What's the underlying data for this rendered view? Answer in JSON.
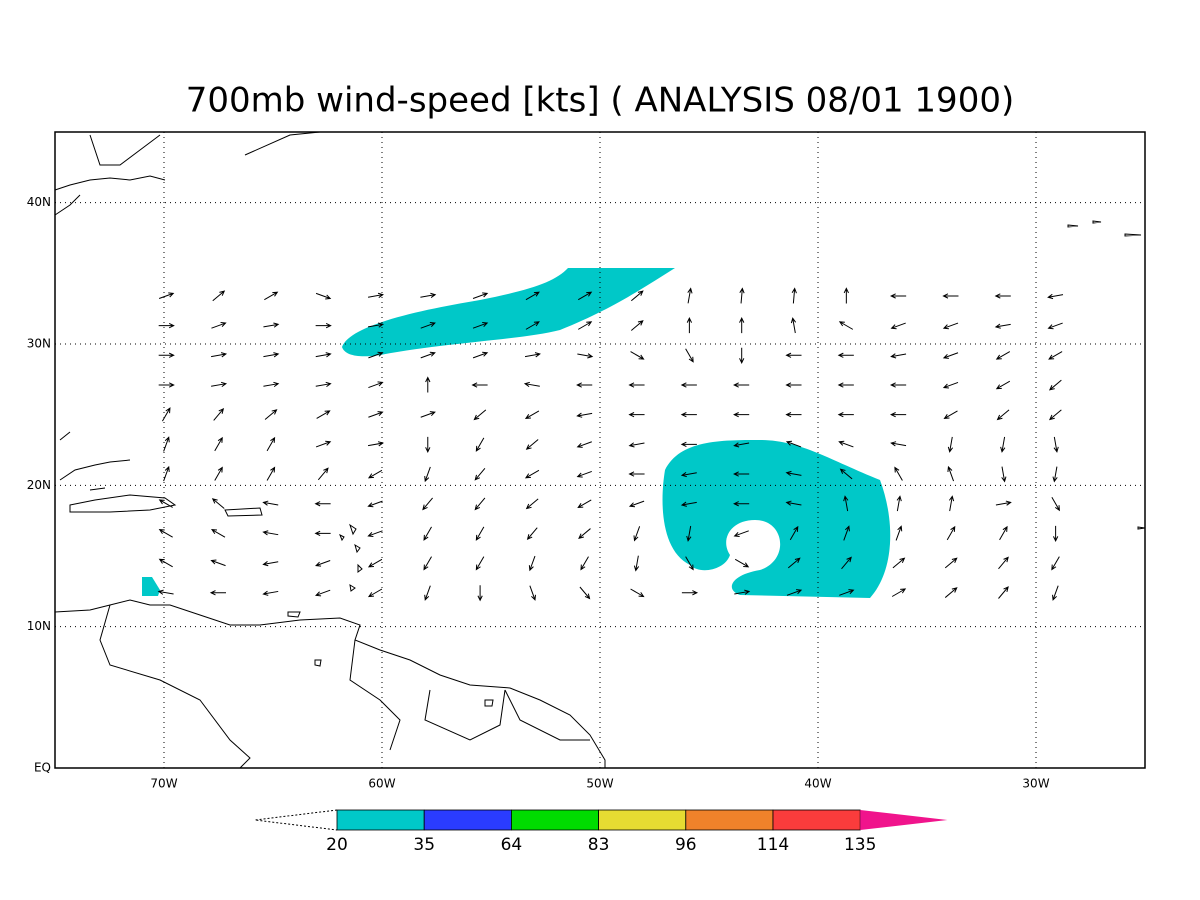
{
  "title": "700mb wind-speed [kts] ( ANALYSIS 08/01 1900)",
  "map": {
    "xlim": [
      -75,
      -25
    ],
    "ylim": [
      0,
      45
    ],
    "grid": true,
    "xticks": [
      {
        "value": -70,
        "label": "70W"
      },
      {
        "value": -60,
        "label": "60W"
      },
      {
        "value": -50,
        "label": "50W"
      },
      {
        "value": -40,
        "label": "40W"
      },
      {
        "value": -30,
        "label": "30W"
      }
    ],
    "yticks": [
      {
        "value": 0,
        "label": "EQ"
      },
      {
        "value": 10,
        "label": "10N"
      },
      {
        "value": 20,
        "label": "20N"
      },
      {
        "value": 30,
        "label": "30N"
      },
      {
        "value": 40,
        "label": "40N"
      }
    ]
  },
  "wind": {
    "lons": [
      -69.9,
      -67.5,
      -65.1,
      -62.7,
      -60.3,
      -57.9,
      -55.5,
      -53.1,
      -50.7,
      -48.3,
      -45.9,
      -43.5,
      -41.1,
      -38.7,
      -36.3,
      -33.9,
      -31.5,
      -29.1
    ],
    "lats": [
      33.4,
      31.3,
      29.2,
      27.1,
      25,
      22.9,
      20.8,
      18.7,
      16.6,
      14.5,
      12.4
    ],
    "directions": [
      [
        20,
        40,
        30,
        -20,
        10,
        10,
        20,
        30,
        30,
        40,
        80,
        85,
        85,
        90,
        180,
        180,
        180,
        190
      ],
      [
        0,
        20,
        10,
        0,
        10,
        20,
        20,
        30,
        30,
        40,
        90,
        90,
        100,
        150,
        200,
        200,
        190,
        200
      ],
      [
        0,
        10,
        10,
        10,
        20,
        20,
        20,
        10,
        -10,
        -30,
        -60,
        -90,
        180,
        180,
        190,
        200,
        210,
        210
      ],
      [
        0,
        10,
        10,
        10,
        20,
        90,
        180,
        170,
        180,
        180,
        180,
        180,
        180,
        180,
        180,
        200,
        210,
        220
      ],
      [
        60,
        50,
        40,
        30,
        20,
        20,
        220,
        210,
        190,
        180,
        180,
        180,
        180,
        180,
        180,
        210,
        220,
        220
      ],
      [
        70,
        60,
        60,
        20,
        10,
        270,
        240,
        220,
        200,
        190,
        180,
        190,
        160,
        160,
        170,
        260,
        260,
        280
      ],
      [
        70,
        60,
        60,
        50,
        210,
        250,
        230,
        210,
        200,
        180,
        190,
        180,
        170,
        140,
        120,
        110,
        280,
        260
      ],
      [
        150,
        140,
        170,
        180,
        200,
        230,
        230,
        220,
        210,
        200,
        190,
        180,
        170,
        100,
        80,
        80,
        10,
        300
      ],
      [
        150,
        150,
        170,
        180,
        200,
        240,
        240,
        230,
        220,
        250,
        260,
        200,
        60,
        70,
        70,
        60,
        60,
        270
      ],
      [
        150,
        160,
        190,
        200,
        210,
        240,
        240,
        250,
        240,
        260,
        300,
        330,
        40,
        50,
        40,
        40,
        50,
        240
      ],
      [
        170,
        180,
        190,
        200,
        210,
        250,
        270,
        290,
        310,
        330,
        0,
        10,
        20,
        20,
        30,
        40,
        50,
        250
      ]
    ]
  },
  "colorbar": {
    "levels": [
      20,
      35,
      64,
      83,
      96,
      114,
      135
    ],
    "colors": [
      "#00c8c8",
      "#2a3cff",
      "#00dc00",
      "#e6dc32",
      "#f0822a",
      "#fa3c3c",
      "#f0148c"
    ]
  }
}
